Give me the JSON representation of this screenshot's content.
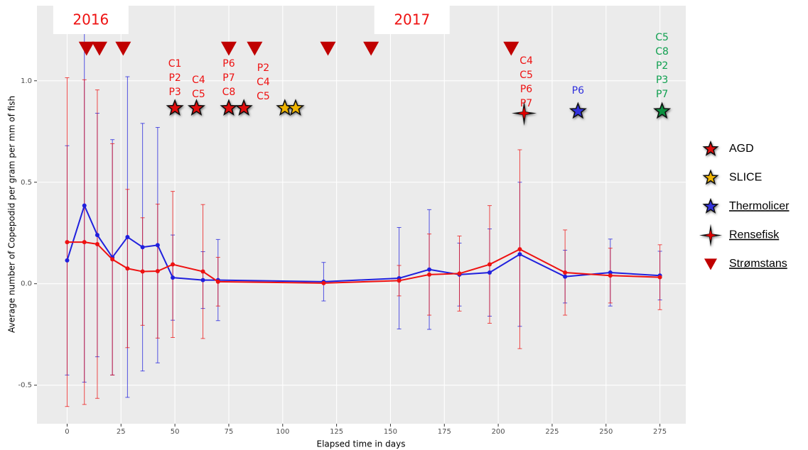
{
  "chart_data": {
    "type": "line",
    "x_label": "Elapsed time in days",
    "y_label": "Average number of Copepodid per gram per mm of fish",
    "x": [
      0,
      8,
      14,
      21,
      28,
      35,
      42,
      49,
      63,
      70,
      119,
      154,
      168,
      182,
      196,
      210,
      231,
      252,
      275
    ],
    "series": [
      {
        "color": "#2020dd",
        "values": [
          0.115,
          0.385,
          0.24,
          0.13,
          0.23,
          0.18,
          0.19,
          0.03,
          0.018,
          0.018,
          0.01,
          0.027,
          0.07,
          0.045,
          0.055,
          0.145,
          0.035,
          0.055,
          0.04
        ],
        "errors": [
          0.565,
          0.87,
          0.6,
          0.58,
          0.79,
          0.61,
          0.58,
          0.21,
          0.14,
          0.2,
          0.095,
          0.25,
          0.295,
          0.155,
          0.215,
          0.355,
          0.13,
          0.165,
          0.12
        ]
      },
      {
        "color": "#ee1111",
        "values": [
          0.205,
          0.205,
          0.195,
          0.12,
          0.075,
          0.06,
          0.062,
          0.095,
          0.06,
          0.01,
          0.003,
          0.015,
          0.045,
          0.05,
          0.095,
          0.17,
          0.055,
          0.04,
          0.032
        ],
        "errors": [
          0.81,
          0.8,
          0.76,
          0.57,
          0.39,
          0.265,
          0.33,
          0.36,
          0.33,
          0.12,
          0,
          0.075,
          0.2,
          0.185,
          0.29,
          0.49,
          0.21,
          0.135,
          0.16
        ]
      }
    ],
    "xlim": [
      -14,
      287
    ],
    "ylim": [
      -0.69,
      1.37
    ],
    "xticks": [
      0,
      25,
      50,
      75,
      100,
      125,
      150,
      175,
      200,
      225,
      250,
      275
    ],
    "yticks": [
      {
        "value": -0.5,
        "label": "-0.5"
      },
      {
        "value": 0,
        "label": "0.0"
      },
      {
        "value": 0.5,
        "label": "0.5"
      },
      {
        "value": 1,
        "label": "1.0"
      }
    ],
    "grid": true,
    "legend": "right",
    "markers": [
      {
        "name": "AGD",
        "shape": "star",
        "color": "#e01010",
        "x": [
          50,
          60,
          75,
          82
        ],
        "y": [
          0.865,
          0.865,
          0.865,
          0.865
        ]
      },
      {
        "name": "SLICE",
        "shape": "star",
        "color": "#f0b400",
        "x": [
          101,
          106
        ],
        "y": [
          0.865,
          0.865
        ]
      },
      {
        "name": "Thermolicer",
        "shape": "star",
        "color": "#3030dd",
        "x": [
          237
        ],
        "y": [
          0.85
        ]
      },
      {
        "name": "Rensefisk",
        "shape": "cross-star",
        "color": "#dd0000",
        "x": [
          212
        ],
        "y": [
          0.84
        ]
      },
      {
        "name": "Strømstans",
        "shape": "triangle",
        "color": "#c00000",
        "x": [
          9,
          15,
          26,
          75,
          87,
          121,
          141,
          206
        ],
        "y": [
          1.16,
          1.16,
          1.16,
          1.16,
          1.16,
          1.16,
          1.16,
          1.16
        ]
      },
      {
        "shape": "star",
        "color": "#109040",
        "x": [
          276
        ],
        "y": [
          0.85
        ]
      }
    ],
    "annotations": [
      {
        "lines": [
          "C1",
          "P2",
          "P3"
        ],
        "x": 50,
        "y": 1.084,
        "color": "#ee1111"
      },
      {
        "lines": [
          "C4",
          "C5"
        ],
        "x": 61,
        "y": 1.003,
        "color": "#ee1111"
      },
      {
        "lines": [
          "P6",
          "P7",
          "C8"
        ],
        "x": 75,
        "y": 1.084,
        "color": "#ee1111"
      },
      {
        "lines": [
          "P2",
          "C4",
          "C5"
        ],
        "x": 91,
        "y": 1.063,
        "color": "#ee1111"
      },
      {
        "lines": [
          "C4",
          "C5",
          "P6",
          "P7"
        ],
        "x": 213,
        "y": 1.098,
        "color": "#ee1111"
      },
      {
        "lines": [
          "P6"
        ],
        "x": 237,
        "y": 0.951,
        "color": "#3030dd"
      },
      {
        "lines": [
          "C5",
          "C8",
          "P2",
          "P3",
          "P7"
        ],
        "x": 276,
        "y": 1.213,
        "color": "#10a050"
      }
    ],
    "year_labels": [
      {
        "text": "2016",
        "x": 11
      },
      {
        "text": "2017",
        "x": 160
      }
    ]
  }
}
